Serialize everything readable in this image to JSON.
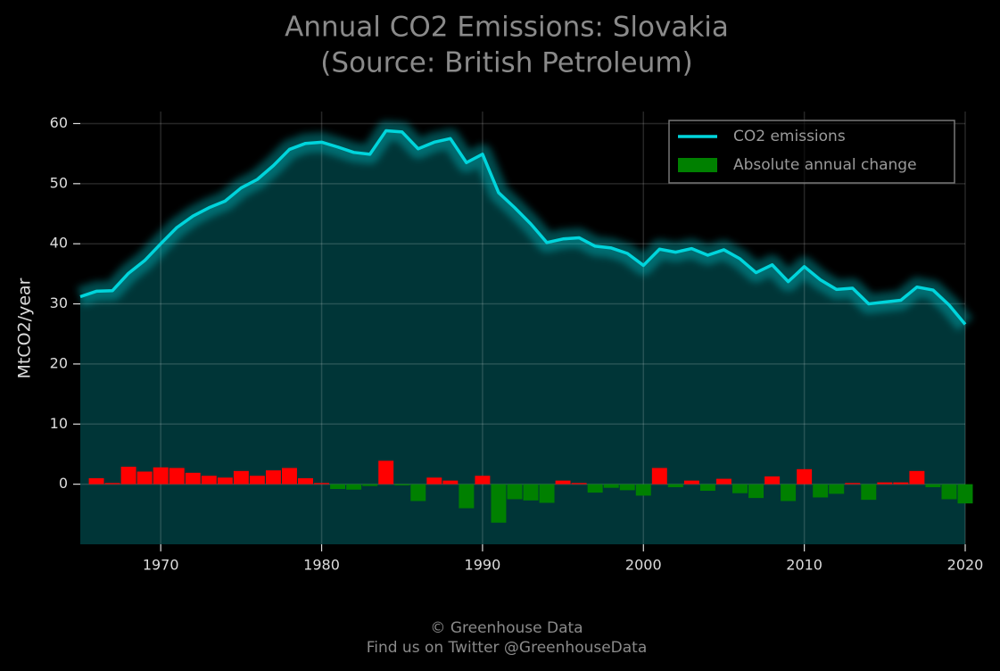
{
  "chart_data": {
    "type": "line",
    "title": "Annual CO2 Emissions: Slovakia",
    "subtitle": "(Source: British Petroleum)",
    "ylabel": "MtCO2/year",
    "footer": [
      "© Greenhouse Data",
      "Find us on Twitter @GreenhouseData"
    ],
    "x": [
      1965,
      1966,
      1967,
      1968,
      1969,
      1970,
      1971,
      1972,
      1973,
      1974,
      1975,
      1976,
      1977,
      1978,
      1979,
      1980,
      1981,
      1982,
      1983,
      1984,
      1985,
      1986,
      1987,
      1988,
      1989,
      1990,
      1991,
      1992,
      1993,
      1994,
      1995,
      1996,
      1997,
      1998,
      1999,
      2000,
      2001,
      2002,
      2003,
      2004,
      2005,
      2006,
      2007,
      2008,
      2009,
      2010,
      2011,
      2012,
      2013,
      2014,
      2015,
      2016,
      2017,
      2018,
      2019,
      2020
    ],
    "series": [
      {
        "name": "CO2 emissions",
        "type": "line",
        "color": "#00d5dc",
        "values": [
          31.2,
          32.1,
          32.2,
          35.1,
          37.2,
          40.0,
          42.7,
          44.6,
          46.0,
          47.1,
          49.3,
          50.7,
          53.0,
          55.7,
          56.7,
          56.9,
          56.1,
          55.2,
          54.9,
          58.8,
          58.6,
          55.8,
          56.9,
          57.5,
          53.5,
          54.9,
          48.5,
          46.0,
          43.3,
          40.2,
          40.8,
          41.0,
          39.6,
          39.3,
          38.4,
          36.4,
          39.1,
          38.6,
          39.2,
          38.1,
          39.0,
          37.5,
          35.2,
          36.5,
          33.7,
          36.2,
          34.0,
          32.4,
          32.6,
          30.0,
          30.3,
          30.6,
          32.8,
          32.3,
          29.8,
          26.6
        ]
      },
      {
        "name": "Absolute annual change",
        "type": "bar",
        "color": "#008000",
        "positive_color": "#ff0000",
        "values": [
          null,
          1.0,
          0.2,
          2.9,
          2.1,
          2.8,
          2.7,
          1.9,
          1.4,
          1.1,
          2.2,
          1.4,
          2.3,
          2.7,
          1.0,
          0.2,
          -0.8,
          -0.9,
          -0.3,
          3.9,
          -0.2,
          -2.8,
          1.1,
          0.6,
          -4.0,
          1.4,
          -6.4,
          -2.5,
          -2.7,
          -3.1,
          0.6,
          0.2,
          -1.4,
          -0.6,
          -1.0,
          -1.9,
          2.7,
          -0.5,
          0.6,
          -1.1,
          0.9,
          -1.5,
          -2.3,
          1.3,
          -2.8,
          2.5,
          -2.2,
          -1.6,
          0.2,
          -2.6,
          0.3,
          0.3,
          2.2,
          -0.5,
          -2.5,
          -3.2
        ]
      }
    ],
    "xlim": [
      1965,
      2020
    ],
    "ylim": [
      -10,
      62
    ],
    "xticks": [
      1970,
      1980,
      1990,
      2000,
      2010,
      2020
    ],
    "yticks": [
      0,
      10,
      20,
      30,
      40,
      50,
      60
    ],
    "grid": true,
    "legend": "upper right"
  }
}
